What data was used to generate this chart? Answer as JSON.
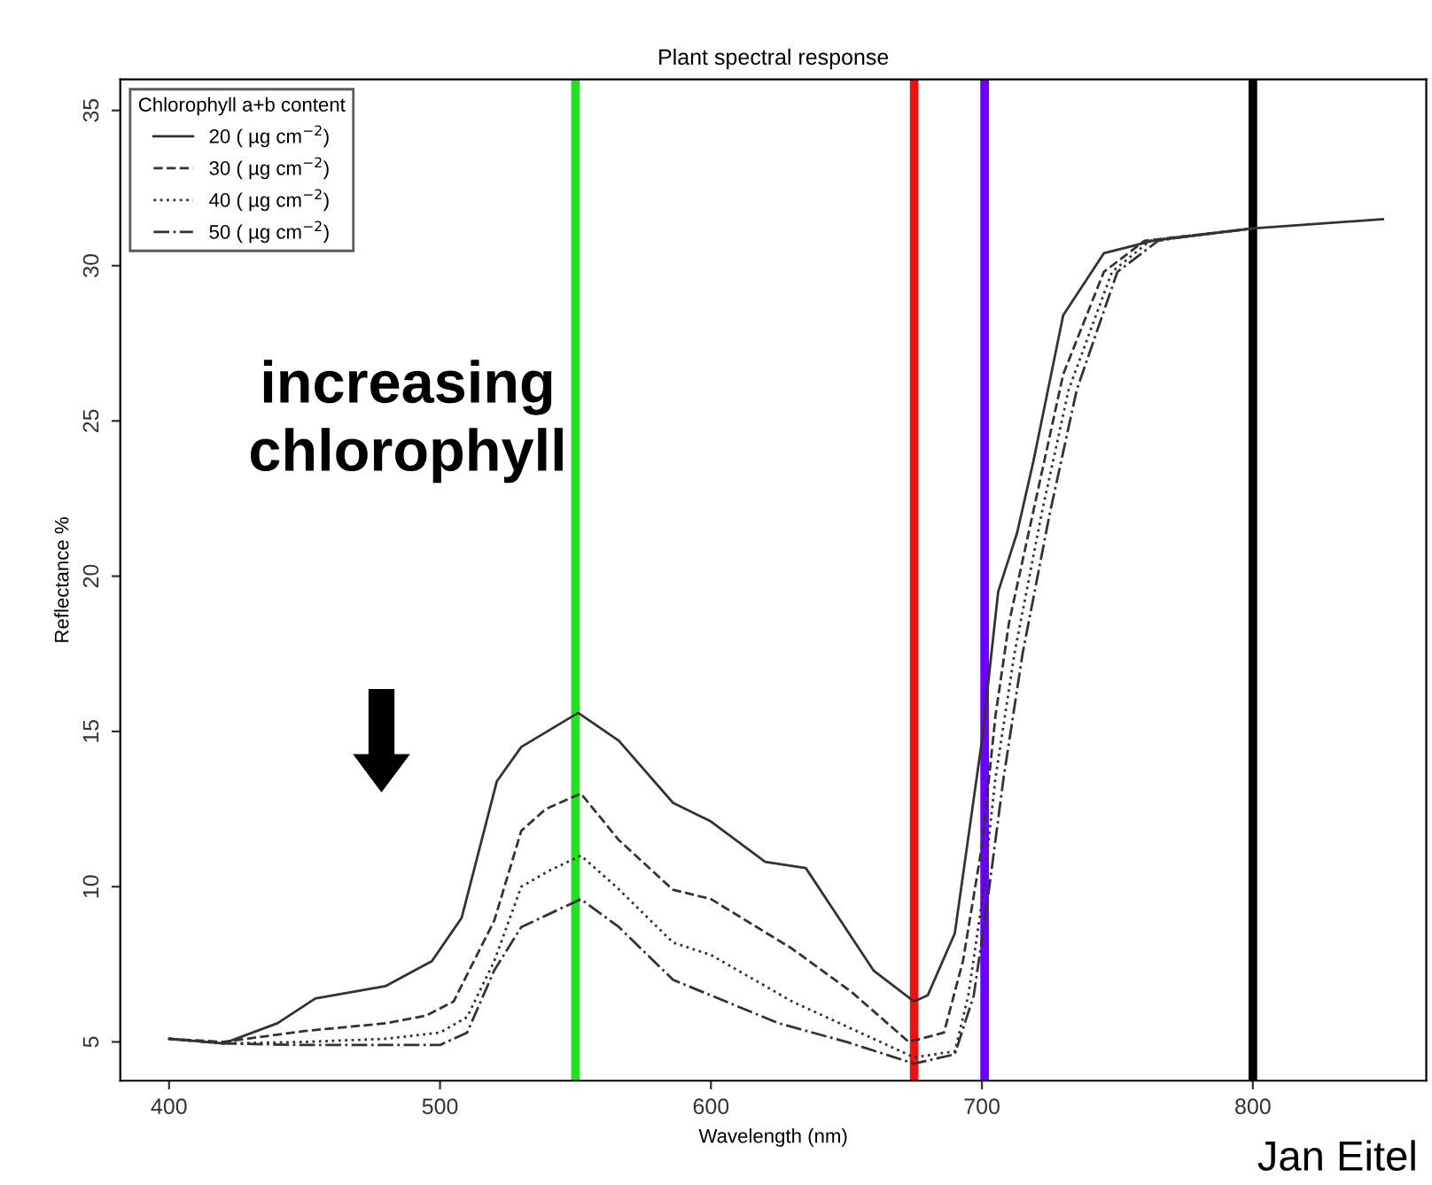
{
  "chart_data": {
    "type": "line",
    "title": "Plant spectral response",
    "xlabel": "Wavelength (nm)",
    "ylabel": "Reflectance %",
    "legend_title": "Chlorophyll a+b content",
    "xlim": [
      382,
      864
    ],
    "ylim": [
      3.75,
      36
    ],
    "xticks": [
      400,
      500,
      600,
      700,
      800
    ],
    "yticks": [
      5,
      10,
      15,
      20,
      25,
      30,
      35
    ],
    "grid": false,
    "legend": "top left",
    "marker": "none",
    "series": [
      {
        "name": "20 ( µg cm$^{−2}$)",
        "color": "#333333",
        "line_style": "solid",
        "x": [
          400,
          420,
          440,
          454,
          480,
          497,
          508,
          521,
          530,
          551,
          566,
          586,
          600,
          620,
          635,
          660,
          675,
          680,
          690,
          700,
          706,
          713,
          719,
          730,
          745,
          763,
          800,
          848
        ],
        "values": [
          5.1,
          4.95,
          5.6,
          6.4,
          6.8,
          7.6,
          9.0,
          13.4,
          14.5,
          15.6,
          14.7,
          12.7,
          12.1,
          10.8,
          10.6,
          7.3,
          6.3,
          6.5,
          8.5,
          14.7,
          19.5,
          21.4,
          23.7,
          28.4,
          30.4,
          30.8,
          31.2,
          31.5
        ]
      },
      {
        "name": "30 ( µg cm$^{−2}$)",
        "color": "#333333",
        "line_style": "dashed",
        "x": [
          400,
          420,
          450,
          480,
          495,
          505,
          520,
          530,
          539,
          552,
          566,
          586,
          600,
          630,
          652,
          673,
          686,
          693,
          700,
          705,
          710,
          720,
          730,
          745,
          760,
          770,
          800
        ],
        "values": [
          5.1,
          5.0,
          5.35,
          5.6,
          5.85,
          6.3,
          8.9,
          11.8,
          12.5,
          13.0,
          11.5,
          9.9,
          9.6,
          8.0,
          6.6,
          5.0,
          5.3,
          7.6,
          11.3,
          15.5,
          18.5,
          22.5,
          26.5,
          29.8,
          30.8,
          30.9,
          31.2
        ]
      },
      {
        "name": "40 ( µg cm$^{−2}$)",
        "color": "#333333",
        "line_style": "dotted",
        "x": [
          400,
          420,
          450,
          480,
          500,
          510,
          520,
          530,
          540,
          552,
          565,
          586,
          600,
          630,
          655,
          675,
          690,
          695,
          700,
          705,
          712,
          722,
          732,
          748,
          762,
          770,
          800
        ],
        "values": [
          5.1,
          4.95,
          5.0,
          5.1,
          5.3,
          5.8,
          7.6,
          10.0,
          10.5,
          11.0,
          10.0,
          8.2,
          7.8,
          6.3,
          5.3,
          4.5,
          4.7,
          6.5,
          9.5,
          13.5,
          17.5,
          22.0,
          26.0,
          29.8,
          30.8,
          30.9,
          31.2
        ]
      },
      {
        "name": "50 ( µg cm$^{−2}$)",
        "color": "#333333",
        "line_style": "dashdot",
        "x": [
          400,
          420,
          450,
          480,
          500,
          510,
          520,
          530,
          552,
          566,
          586,
          625,
          650,
          675,
          690,
          697,
          702,
          708,
          715,
          725,
          735,
          750,
          765,
          772,
          800
        ],
        "values": [
          5.1,
          4.95,
          4.9,
          4.9,
          4.9,
          5.3,
          7.3,
          8.7,
          9.6,
          8.7,
          7.0,
          5.6,
          5.0,
          4.3,
          4.6,
          6.5,
          9.5,
          13.5,
          17.5,
          22.0,
          26.0,
          29.8,
          30.8,
          30.9,
          31.2
        ]
      }
    ],
    "ref_lines": [
      {
        "axis": "x",
        "value": 550,
        "color": "#22e022"
      },
      {
        "axis": "x",
        "value": 675,
        "color": "#ee1111"
      },
      {
        "axis": "x",
        "value": 701,
        "color": "#6a00ff"
      },
      {
        "axis": "x",
        "value": 800,
        "color": "#000000"
      }
    ],
    "annotations": [
      "increasing chlorophyll",
      "Jan Eitel"
    ]
  }
}
